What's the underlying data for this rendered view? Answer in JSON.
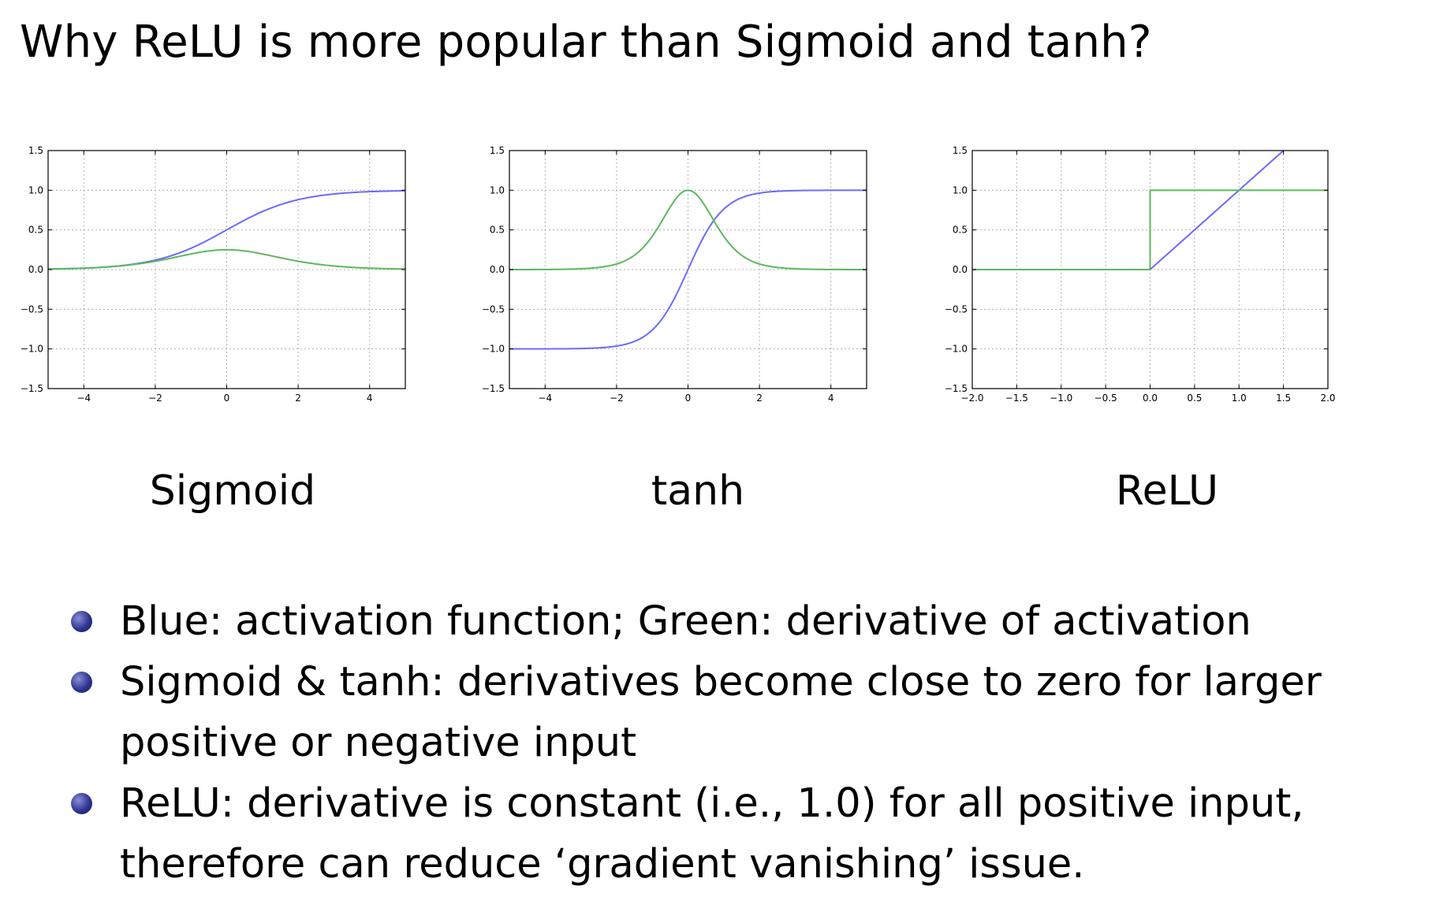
{
  "slide": {
    "title": "Why ReLU is more popular than Sigmoid and tanh?"
  },
  "colors": {
    "activation": "#6b6bff",
    "derivative": "#5cb85c",
    "grid": "#b0b0b0",
    "bullet": "#2e3590"
  },
  "chart_data": [
    {
      "type": "line",
      "caption": "Sigmoid",
      "xlim": [
        -5,
        5
      ],
      "ylim": [
        -1.5,
        1.5
      ],
      "xticks": [
        -4,
        -2,
        0,
        2,
        4
      ],
      "xtick_labels": [
        "−4",
        "−2",
        "0",
        "2",
        "4"
      ],
      "yticks": [
        -1.5,
        -1.0,
        -0.5,
        0.0,
        0.5,
        1.0,
        1.5
      ],
      "ytick_labels": [
        "−1.5",
        "−1.0",
        "−0.5",
        "0.0",
        "0.5",
        "1.0",
        "1.5"
      ],
      "grid": true,
      "series": [
        {
          "role": "activation",
          "function": "sigmoid",
          "x": [
            -5,
            -4,
            -3,
            -2,
            -1,
            0,
            1,
            2,
            3,
            4,
            5
          ],
          "y": [
            0.007,
            0.018,
            0.047,
            0.119,
            0.269,
            0.5,
            0.731,
            0.881,
            0.953,
            0.982,
            0.993
          ]
        },
        {
          "role": "derivative",
          "function": "sigmoid_derivative",
          "x": [
            -5,
            -4,
            -3,
            -2,
            -1,
            0,
            1,
            2,
            3,
            4,
            5
          ],
          "y": [
            0.007,
            0.018,
            0.045,
            0.105,
            0.197,
            0.25,
            0.197,
            0.105,
            0.045,
            0.018,
            0.007
          ]
        }
      ]
    },
    {
      "type": "line",
      "caption": "tanh",
      "xlim": [
        -5,
        5
      ],
      "ylim": [
        -1.5,
        1.5
      ],
      "xticks": [
        -4,
        -2,
        0,
        2,
        4
      ],
      "xtick_labels": [
        "−4",
        "−2",
        "0",
        "2",
        "4"
      ],
      "yticks": [
        -1.5,
        -1.0,
        -0.5,
        0.0,
        0.5,
        1.0,
        1.5
      ],
      "ytick_labels": [
        "−1.5",
        "−1.0",
        "−0.5",
        "0.0",
        "0.5",
        "1.0",
        "1.5"
      ],
      "grid": true,
      "series": [
        {
          "role": "activation",
          "function": "tanh",
          "x": [
            -5,
            -4,
            -3,
            -2,
            -1,
            0,
            1,
            2,
            3,
            4,
            5
          ],
          "y": [
            -1.0,
            -0.999,
            -0.995,
            -0.964,
            -0.762,
            0.0,
            0.762,
            0.964,
            0.995,
            0.999,
            1.0
          ]
        },
        {
          "role": "derivative",
          "function": "tanh_derivative",
          "x": [
            -5,
            -4,
            -3,
            -2,
            -1,
            0,
            1,
            2,
            3,
            4,
            5
          ],
          "y": [
            0.0,
            0.001,
            0.01,
            0.071,
            0.42,
            1.0,
            0.42,
            0.071,
            0.01,
            0.001,
            0.0
          ]
        }
      ]
    },
    {
      "type": "line",
      "caption": "ReLU",
      "xlim": [
        -2,
        2
      ],
      "ylim": [
        -1.5,
        1.5
      ],
      "xticks": [
        -2.0,
        -1.5,
        -1.0,
        -0.5,
        0.0,
        0.5,
        1.0,
        1.5,
        2.0
      ],
      "xtick_labels": [
        "−2.0",
        "−1.5",
        "−1.0",
        "−0.5",
        "0.0",
        "0.5",
        "1.0",
        "1.5",
        "2.0"
      ],
      "yticks": [
        -1.5,
        -1.0,
        -0.5,
        0.0,
        0.5,
        1.0,
        1.5
      ],
      "ytick_labels": [
        "−1.5",
        "−1.0",
        "−0.5",
        "0.0",
        "0.5",
        "1.0",
        "1.5"
      ],
      "grid": true,
      "series": [
        {
          "role": "activation",
          "function": "relu",
          "x": [
            -2.0,
            0.0,
            1.5
          ],
          "y": [
            0.0,
            0.0,
            1.5
          ]
        },
        {
          "role": "derivative",
          "function": "relu_derivative",
          "x": [
            -2.0,
            0.0,
            0.0,
            2.0
          ],
          "y": [
            0.0,
            0.0,
            1.0,
            1.0
          ]
        }
      ]
    }
  ],
  "bullets": [
    "Blue: activation function; Green: derivative of activation",
    "Sigmoid & tanh: derivatives become close to zero for larger positive or negative input",
    "ReLU: derivative is constant (i.e., 1.0) for all positive input, therefore can reduce ‘gradient vanishing’ issue."
  ]
}
